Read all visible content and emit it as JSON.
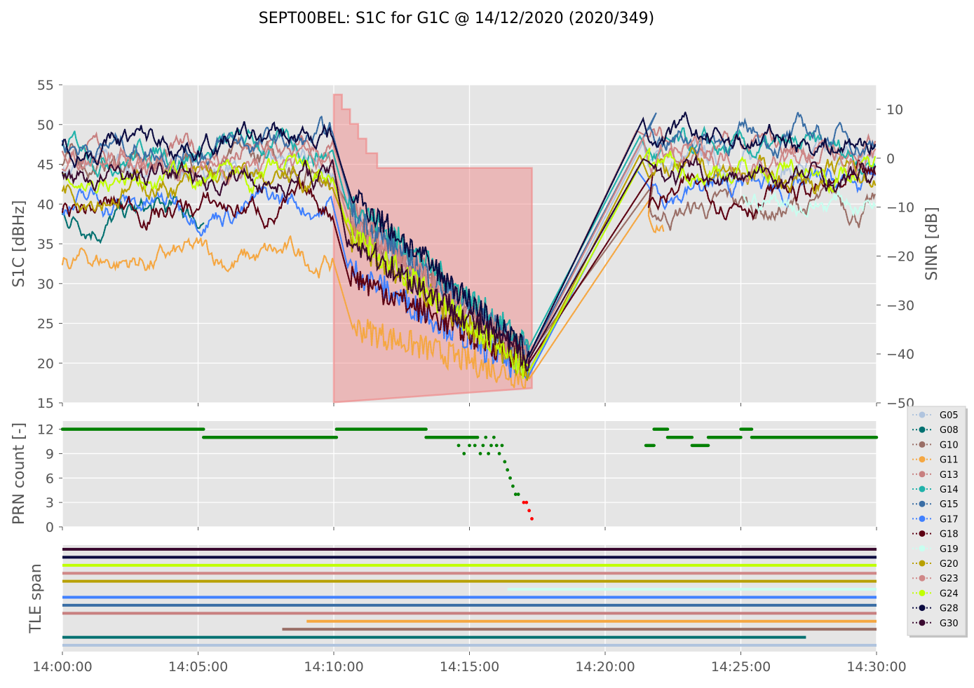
{
  "chart_data": {
    "type": "multi-panel",
    "title": "SEPT00BEL: S1C for G1C @ 14/12/2020 (2020/349)",
    "x_tick_labels": [
      "14:00:00",
      "14:05:00",
      "14:10:00",
      "14:15:00",
      "14:20:00",
      "14:25:00",
      "14:30:00"
    ],
    "x_range_minutes": [
      0,
      30
    ],
    "grid": true,
    "legend_position": "right",
    "top_panel": {
      "type": "scatter",
      "ylabel": "S1C [dBHz]",
      "ylim": [
        15,
        55
      ],
      "yticks": [
        "15",
        "20",
        "25",
        "30",
        "35",
        "40",
        "45",
        "50",
        "55"
      ],
      "y2label": "SINR [dB]",
      "y2lim": [
        -50,
        15
      ],
      "y2ticks": [
        "10",
        "0",
        "−10",
        "−20",
        "−30",
        "−40",
        "−50"
      ],
      "sinr_area": {
        "color": "#f08080",
        "t": [
          10.0,
          10.3,
          10.3,
          10.6,
          10.6,
          10.9,
          10.9,
          11.2,
          11.2,
          11.6,
          11.6,
          17.3
        ],
        "v": [
          13,
          13,
          10,
          10,
          7,
          7,
          4,
          4,
          1,
          1,
          -2,
          -2
        ],
        "end_value": -47
      },
      "series": [
        {
          "name": "G05",
          "color": "#b0c4de",
          "pre": 44.5,
          "post": 45.0,
          "low": 19.5
        },
        {
          "name": "G08",
          "color": "#007070",
          "pre": 38.5,
          "post": null,
          "low": null
        },
        {
          "name": "G10",
          "color": "#9a6f67",
          "pre": 45.0,
          "post": 39.5,
          "low": 21.0
        },
        {
          "name": "G11",
          "color": "#f5a742",
          "pre": 33.0,
          "post": 38.0,
          "low": 18.0
        },
        {
          "name": "G13",
          "color": "#c88080",
          "pre": 46.0,
          "post": 46.5,
          "low": 21.0
        },
        {
          "name": "G14",
          "color": "#20b2aa",
          "pre": 47.0,
          "post": 46.0,
          "low": 22.0
        },
        {
          "name": "G15",
          "color": "#3a6ea5",
          "pre": 47.5,
          "post": 48.5,
          "low": 21.0
        },
        {
          "name": "G17",
          "color": "#4080ff",
          "pre": 40.0,
          "post": 42.0,
          "low": 18.5
        },
        {
          "name": "G18",
          "color": "#5c0012",
          "pre": 39.5,
          "post": 41.5,
          "low": 20.0
        },
        {
          "name": "G19",
          "color": "#c8fff0",
          "pre": null,
          "post": 40.5,
          "low": null
        },
        {
          "name": "G20",
          "color": "#b8a000",
          "pre": 42.5,
          "post": 43.5,
          "low": 19.0
        },
        {
          "name": "G23",
          "color": "#d08888",
          "pre": 45.0,
          "post": 46.0,
          "low": 20.5
        },
        {
          "name": "G24",
          "color": "#c0ff00",
          "pre": 43.0,
          "post": 44.5,
          "low": 19.0
        },
        {
          "name": "G28",
          "color": "#0a0a40",
          "pre": 48.0,
          "post": 48.0,
          "low": 21.0
        },
        {
          "name": "G30",
          "color": "#3a0a30",
          "pre": 43.5,
          "post": 43.0,
          "low": 20.5
        }
      ]
    },
    "middle_panel": {
      "type": "scatter",
      "ylabel": "PRN count [-]",
      "ylim": [
        0,
        13
      ],
      "yticks": [
        "0",
        "3",
        "6",
        "9",
        "12"
      ],
      "steps": [
        {
          "t0": 0.0,
          "t1": 5.2,
          "v": 12
        },
        {
          "t0": 5.2,
          "t1": 10.1,
          "v": 11
        },
        {
          "t0": 10.1,
          "t1": 13.4,
          "v": 12
        },
        {
          "t0": 13.4,
          "t1": 15.3,
          "v": 11
        },
        {
          "t0": 21.5,
          "t1": 21.8,
          "v": 10
        },
        {
          "t0": 21.8,
          "t1": 22.3,
          "v": 12
        },
        {
          "t0": 22.3,
          "t1": 23.2,
          "v": 11
        },
        {
          "t0": 23.2,
          "t1": 23.8,
          "v": 10
        },
        {
          "t0": 23.8,
          "t1": 25.0,
          "v": 11
        },
        {
          "t0": 25.0,
          "t1": 25.4,
          "v": 12
        },
        {
          "t0": 25.4,
          "t1": 30.0,
          "v": 11
        }
      ],
      "scatter_points": [
        [
          14.6,
          10
        ],
        [
          14.8,
          9
        ],
        [
          15.0,
          10
        ],
        [
          15.2,
          10
        ],
        [
          15.4,
          9
        ],
        [
          15.5,
          10
        ],
        [
          15.6,
          11
        ],
        [
          15.7,
          9
        ],
        [
          15.8,
          10
        ],
        [
          15.9,
          11
        ],
        [
          16.0,
          10
        ],
        [
          16.1,
          9
        ],
        [
          16.2,
          10
        ],
        [
          16.3,
          8
        ],
        [
          16.4,
          7
        ],
        [
          16.5,
          6
        ],
        [
          16.6,
          5
        ],
        [
          16.7,
          4
        ],
        [
          16.8,
          4
        ],
        [
          17.0,
          3
        ],
        [
          17.1,
          3
        ],
        [
          17.2,
          2
        ],
        [
          17.3,
          1
        ]
      ],
      "red_threshold": 3
    },
    "bottom_panel": {
      "type": "bar",
      "ylabel": "TLE span",
      "bars": [
        {
          "name": "G30",
          "t0": 0.0,
          "t1": 30.0
        },
        {
          "name": "G28",
          "t0": 0.0,
          "t1": 30.0
        },
        {
          "name": "G24",
          "t0": 0.0,
          "t1": 30.0
        },
        {
          "name": "G23",
          "t0": 0.0,
          "t1": 30.0
        },
        {
          "name": "G20",
          "t0": 0.0,
          "t1": 30.0
        },
        {
          "name": "G19",
          "t0": 16.4,
          "t1": 30.0
        },
        {
          "name": "G17",
          "t0": 0.0,
          "t1": 30.0
        },
        {
          "name": "G15",
          "t0": 0.0,
          "t1": 30.0
        },
        {
          "name": "G13",
          "t0": 0.0,
          "t1": 30.0
        },
        {
          "name": "G11",
          "t0": 9.0,
          "t1": 30.0
        },
        {
          "name": "G10",
          "t0": 8.1,
          "t1": 30.0
        },
        {
          "name": "G08",
          "t0": 0.0,
          "t1": 27.4
        },
        {
          "name": "G05",
          "t0": 0.0,
          "t1": 30.0
        }
      ]
    }
  }
}
